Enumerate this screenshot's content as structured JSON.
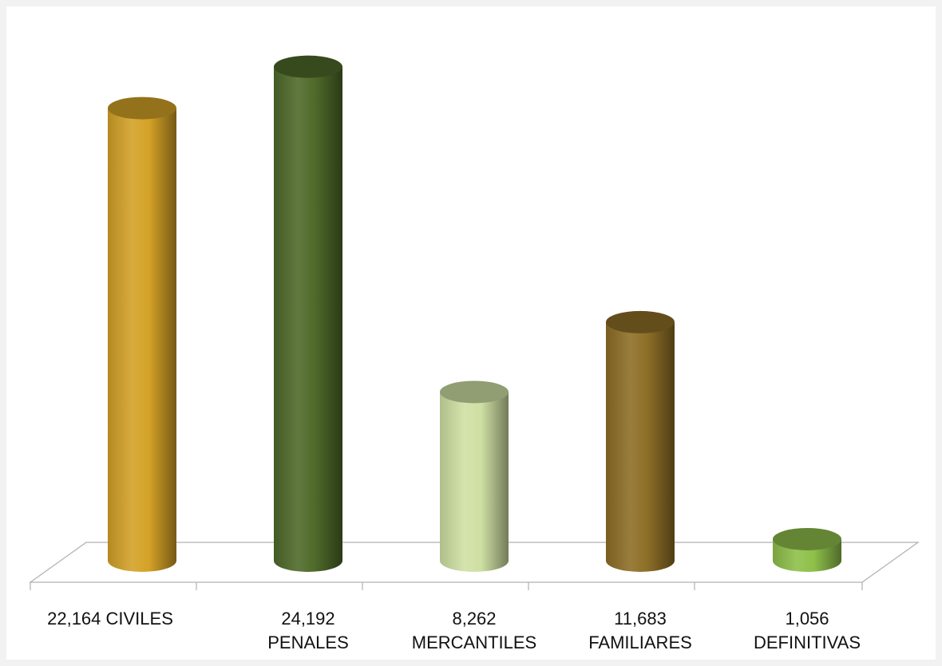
{
  "chart_data": {
    "type": "bar",
    "style": "3d-cylinder",
    "categories": [
      [
        "22,164 CIVILES"
      ],
      [
        "24,192",
        "PENALES"
      ],
      [
        "8,262",
        "MERCANTILES"
      ],
      [
        "11,683",
        "FAMILIARES"
      ],
      [
        "1,056",
        "DEFINITIVAS"
      ]
    ],
    "values": [
      22164,
      24192,
      8262,
      11683,
      1056
    ],
    "colors": [
      "#d4a227",
      "#4f6a2a",
      "#cfe0a3",
      "#8e6f27",
      "#8fc04a"
    ],
    "title": "",
    "xlabel": "",
    "ylabel": "",
    "ylim": [
      0,
      25000
    ],
    "grid": false,
    "legend": "none"
  }
}
